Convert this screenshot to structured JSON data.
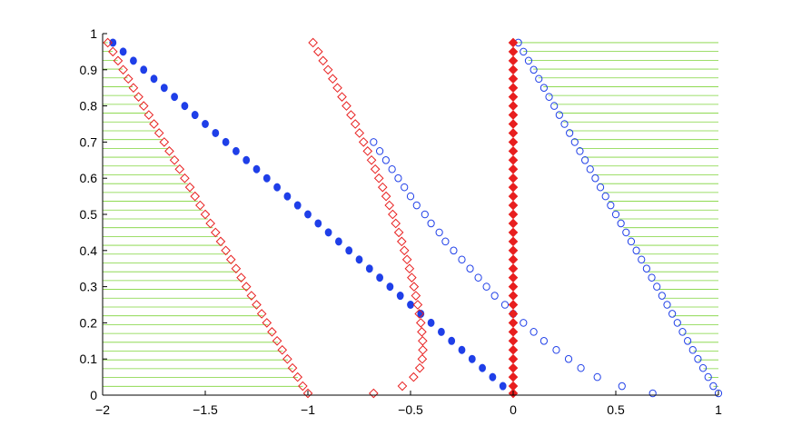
{
  "chart_data": {
    "type": "scatter",
    "title": "",
    "xlabel": "",
    "ylabel": "",
    "xlim": [
      -2,
      1
    ],
    "ylim": [
      0,
      1
    ],
    "xticks": [
      -2,
      -1.5,
      -1,
      -0.5,
      0,
      0.5,
      1
    ],
    "xtick_labels": [
      "−2",
      "−1.5",
      "−1",
      "−0.5",
      "0",
      "0.5",
      "1"
    ],
    "yticks": [
      0,
      0.1,
      0.2,
      0.3,
      0.4,
      0.5,
      0.6,
      0.7,
      0.8,
      0.9,
      1
    ],
    "ytick_labels": [
      "0",
      "0.1",
      "0.2",
      "0.3",
      "0.4",
      "0.5",
      "0.6",
      "0.7",
      "0.8",
      "0.9",
      "1"
    ],
    "grid": false,
    "legend": "none",
    "colors": {
      "blue": "#1f3fe8",
      "red": "#e81f1f",
      "hatch": "#7fd43a"
    },
    "shaded_regions": [
      {
        "description": "green horizontal hatch left of red line",
        "x_left": -2,
        "x_right_at_y0": -1,
        "x_right_at_y1": -2,
        "y_range": [
          0,
          0.975
        ]
      },
      {
        "description": "green horizontal hatch right of blue line",
        "x_left_at_y0": 1,
        "x_left_at_y1": 0,
        "x_right": 1,
        "y_range": [
          0,
          0.975
        ]
      }
    ],
    "series": [
      {
        "marker": "filled-circle",
        "color": "blue",
        "points": [
          [
            -1.95,
            0.975
          ],
          [
            -1.9,
            0.95
          ],
          [
            -1.85,
            0.925
          ],
          [
            -1.8,
            0.9
          ],
          [
            -1.75,
            0.875
          ],
          [
            -1.7,
            0.85
          ],
          [
            -1.65,
            0.825
          ],
          [
            -1.6,
            0.8
          ],
          [
            -1.55,
            0.775
          ],
          [
            -1.5,
            0.75
          ],
          [
            -1.45,
            0.725
          ],
          [
            -1.4,
            0.7
          ],
          [
            -1.35,
            0.675
          ],
          [
            -1.3,
            0.65
          ],
          [
            -1.25,
            0.625
          ],
          [
            -1.2,
            0.6
          ],
          [
            -1.15,
            0.575
          ],
          [
            -1.1,
            0.55
          ],
          [
            -1.05,
            0.525
          ],
          [
            -1.0,
            0.5
          ],
          [
            -0.95,
            0.475
          ],
          [
            -0.9,
            0.45
          ],
          [
            -0.85,
            0.425
          ],
          [
            -0.8,
            0.4
          ],
          [
            -0.75,
            0.375
          ],
          [
            -0.7,
            0.35
          ],
          [
            -0.65,
            0.325
          ],
          [
            -0.6,
            0.3
          ],
          [
            -0.55,
            0.275
          ],
          [
            -0.5,
            0.25
          ],
          [
            -0.45,
            0.225
          ],
          [
            -0.4,
            0.2
          ],
          [
            -0.35,
            0.175
          ],
          [
            -0.3,
            0.15
          ],
          [
            -0.25,
            0.125
          ],
          [
            -0.2,
            0.1
          ],
          [
            -0.15,
            0.075
          ],
          [
            -0.1,
            0.05
          ],
          [
            -0.05,
            0.025
          ]
        ]
      },
      {
        "marker": "open-circle",
        "color": "blue",
        "points": [
          [
            0.025,
            0.975
          ],
          [
            0.05,
            0.95
          ],
          [
            0.075,
            0.925
          ],
          [
            0.1,
            0.9
          ],
          [
            0.125,
            0.875
          ],
          [
            0.15,
            0.85
          ],
          [
            0.175,
            0.825
          ],
          [
            0.2,
            0.8
          ],
          [
            0.225,
            0.775
          ],
          [
            0.25,
            0.75
          ],
          [
            0.275,
            0.725
          ],
          [
            0.3,
            0.7
          ],
          [
            0.325,
            0.675
          ],
          [
            0.35,
            0.65
          ],
          [
            0.375,
            0.625
          ],
          [
            0.4,
            0.6
          ],
          [
            0.425,
            0.575
          ],
          [
            0.45,
            0.55
          ],
          [
            0.475,
            0.525
          ],
          [
            0.5,
            0.5
          ],
          [
            0.525,
            0.475
          ],
          [
            0.55,
            0.45
          ],
          [
            0.575,
            0.425
          ],
          [
            0.6,
            0.4
          ],
          [
            0.625,
            0.375
          ],
          [
            0.65,
            0.35
          ],
          [
            0.675,
            0.325
          ],
          [
            0.7,
            0.3
          ],
          [
            0.725,
            0.275
          ],
          [
            0.75,
            0.25
          ],
          [
            0.775,
            0.225
          ],
          [
            0.8,
            0.2
          ],
          [
            0.825,
            0.175
          ],
          [
            0.85,
            0.15
          ],
          [
            0.875,
            0.125
          ],
          [
            0.9,
            0.1
          ],
          [
            0.925,
            0.075
          ],
          [
            0.95,
            0.05
          ],
          [
            0.975,
            0.025
          ],
          [
            1.0,
            0.005
          ]
        ]
      },
      {
        "marker": "open-circle",
        "color": "blue",
        "points": [
          [
            -0.68,
            0.7
          ],
          [
            -0.65,
            0.675
          ],
          [
            -0.62,
            0.65
          ],
          [
            -0.59,
            0.625
          ],
          [
            -0.56,
            0.6
          ],
          [
            -0.53,
            0.575
          ],
          [
            -0.5,
            0.55
          ],
          [
            -0.47,
            0.525
          ],
          [
            -0.43,
            0.5
          ],
          [
            -0.4,
            0.475
          ],
          [
            -0.36,
            0.45
          ],
          [
            -0.33,
            0.425
          ],
          [
            -0.29,
            0.4
          ],
          [
            -0.25,
            0.375
          ],
          [
            -0.21,
            0.35
          ],
          [
            -0.17,
            0.325
          ],
          [
            -0.13,
            0.3
          ],
          [
            -0.09,
            0.275
          ],
          [
            -0.04,
            0.25
          ],
          [
            0.0,
            0.225
          ],
          [
            0.05,
            0.2
          ],
          [
            0.1,
            0.175
          ],
          [
            0.15,
            0.15
          ],
          [
            0.21,
            0.125
          ],
          [
            0.27,
            0.1
          ],
          [
            0.33,
            0.075
          ],
          [
            0.41,
            0.05
          ],
          [
            0.53,
            0.025
          ],
          [
            0.68,
            0.005
          ]
        ]
      },
      {
        "marker": "open-diamond",
        "color": "red",
        "points": [
          [
            -1.975,
            0.975
          ],
          [
            -1.95,
            0.95
          ],
          [
            -1.925,
            0.925
          ],
          [
            -1.9,
            0.9
          ],
          [
            -1.875,
            0.875
          ],
          [
            -1.85,
            0.85
          ],
          [
            -1.825,
            0.825
          ],
          [
            -1.8,
            0.8
          ],
          [
            -1.775,
            0.775
          ],
          [
            -1.75,
            0.75
          ],
          [
            -1.725,
            0.725
          ],
          [
            -1.7,
            0.7
          ],
          [
            -1.675,
            0.675
          ],
          [
            -1.65,
            0.65
          ],
          [
            -1.625,
            0.625
          ],
          [
            -1.6,
            0.6
          ],
          [
            -1.575,
            0.575
          ],
          [
            -1.55,
            0.55
          ],
          [
            -1.525,
            0.525
          ],
          [
            -1.5,
            0.5
          ],
          [
            -1.475,
            0.475
          ],
          [
            -1.45,
            0.45
          ],
          [
            -1.425,
            0.425
          ],
          [
            -1.4,
            0.4
          ],
          [
            -1.375,
            0.375
          ],
          [
            -1.35,
            0.35
          ],
          [
            -1.325,
            0.325
          ],
          [
            -1.3,
            0.3
          ],
          [
            -1.275,
            0.275
          ],
          [
            -1.25,
            0.25
          ],
          [
            -1.225,
            0.225
          ],
          [
            -1.2,
            0.2
          ],
          [
            -1.175,
            0.175
          ],
          [
            -1.15,
            0.15
          ],
          [
            -1.125,
            0.125
          ],
          [
            -1.1,
            0.1
          ],
          [
            -1.075,
            0.075
          ],
          [
            -1.05,
            0.05
          ],
          [
            -1.025,
            0.025
          ],
          [
            -1.0,
            0.005
          ]
        ]
      },
      {
        "marker": "open-diamond",
        "color": "red",
        "points": [
          [
            -0.975,
            0.975
          ],
          [
            -0.95,
            0.95
          ],
          [
            -0.926,
            0.925
          ],
          [
            -0.902,
            0.9
          ],
          [
            -0.879,
            0.875
          ],
          [
            -0.856,
            0.85
          ],
          [
            -0.834,
            0.825
          ],
          [
            -0.812,
            0.8
          ],
          [
            -0.79,
            0.775
          ],
          [
            -0.769,
            0.75
          ],
          [
            -0.749,
            0.725
          ],
          [
            -0.729,
            0.7
          ],
          [
            -0.709,
            0.675
          ],
          [
            -0.69,
            0.65
          ],
          [
            -0.672,
            0.625
          ],
          [
            -0.654,
            0.6
          ],
          [
            -0.636,
            0.575
          ],
          [
            -0.619,
            0.55
          ],
          [
            -0.603,
            0.525
          ],
          [
            -0.587,
            0.5
          ],
          [
            -0.572,
            0.475
          ],
          [
            -0.557,
            0.45
          ],
          [
            -0.543,
            0.425
          ],
          [
            -0.53,
            0.4
          ],
          [
            -0.517,
            0.375
          ],
          [
            -0.505,
            0.35
          ],
          [
            -0.494,
            0.325
          ],
          [
            -0.483,
            0.3
          ],
          [
            -0.474,
            0.275
          ],
          [
            -0.465,
            0.25
          ],
          [
            -0.457,
            0.225
          ],
          [
            -0.45,
            0.2
          ],
          [
            -0.445,
            0.175
          ],
          [
            -0.441,
            0.15
          ],
          [
            -0.44,
            0.125
          ],
          [
            -0.443,
            0.1
          ],
          [
            -0.455,
            0.075
          ],
          [
            -0.485,
            0.05
          ],
          [
            -0.54,
            0.025
          ],
          [
            -0.68,
            0.005
          ]
        ]
      },
      {
        "marker": "filled-diamond",
        "color": "red",
        "points": [
          [
            0,
            0.975
          ],
          [
            0,
            0.95
          ],
          [
            0,
            0.925
          ],
          [
            0,
            0.9
          ],
          [
            0,
            0.875
          ],
          [
            0,
            0.85
          ],
          [
            0,
            0.825
          ],
          [
            0,
            0.8
          ],
          [
            0,
            0.775
          ],
          [
            0,
            0.75
          ],
          [
            0,
            0.725
          ],
          [
            0,
            0.7
          ],
          [
            0,
            0.675
          ],
          [
            0,
            0.65
          ],
          [
            0,
            0.625
          ],
          [
            0,
            0.6
          ],
          [
            0,
            0.575
          ],
          [
            0,
            0.55
          ],
          [
            0,
            0.525
          ],
          [
            0,
            0.5
          ],
          [
            0,
            0.475
          ],
          [
            0,
            0.45
          ],
          [
            0,
            0.425
          ],
          [
            0,
            0.4
          ],
          [
            0,
            0.375
          ],
          [
            0,
            0.35
          ],
          [
            0,
            0.325
          ],
          [
            0,
            0.3
          ],
          [
            0,
            0.275
          ],
          [
            0,
            0.25
          ],
          [
            0,
            0.225
          ],
          [
            0,
            0.2
          ],
          [
            0,
            0.175
          ],
          [
            0,
            0.15
          ],
          [
            0,
            0.125
          ],
          [
            0,
            0.1
          ],
          [
            0,
            0.075
          ],
          [
            0,
            0.05
          ],
          [
            0,
            0.025
          ],
          [
            0,
            0.005
          ]
        ]
      }
    ]
  }
}
